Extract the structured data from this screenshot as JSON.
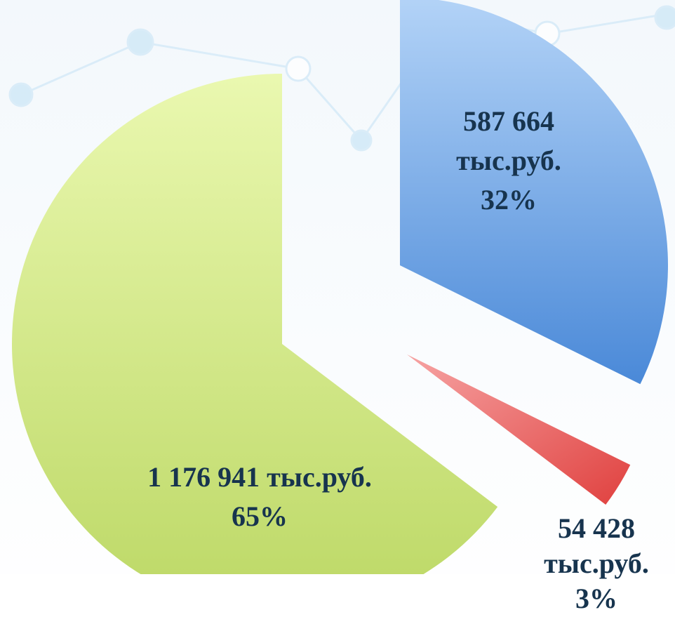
{
  "chart_data": {
    "type": "pie",
    "values": [
      587664,
      54428,
      1176941
    ],
    "value_labels": [
      "587 664 тыс.руб.",
      "54 428 тыс.руб.",
      "1 176 941 тыс.руб."
    ],
    "percentages": [
      32,
      3,
      65
    ],
    "percentage_labels": [
      "32%",
      "3%",
      "65%"
    ],
    "colors": [
      "#6fa3e6",
      "#ee6f6f",
      "#cfe781"
    ]
  }
}
